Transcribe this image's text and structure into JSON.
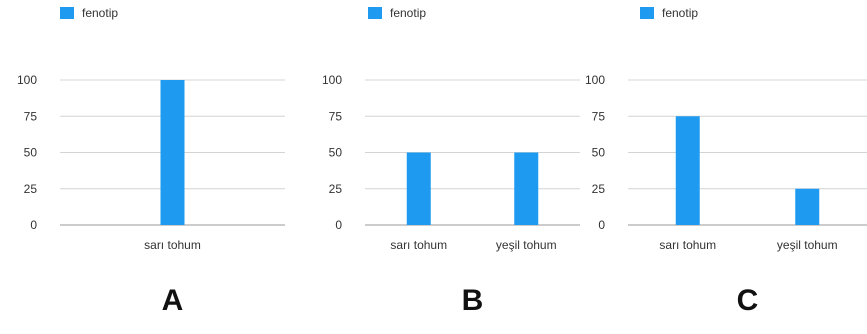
{
  "chart_data": [
    {
      "type": "bar",
      "panel_label": "A",
      "legend": [
        "fenotip"
      ],
      "categories": [
        "sarı tohum"
      ],
      "series": [
        {
          "name": "fenotip",
          "values": [
            100
          ]
        }
      ],
      "yticks": [
        "0",
        "25",
        "50",
        "75",
        "100"
      ],
      "ylim": [
        0,
        100
      ],
      "grid": true,
      "legend_position": "top-left",
      "bar_color": "#1e9bf0"
    },
    {
      "type": "bar",
      "panel_label": "B",
      "legend": [
        "fenotip"
      ],
      "categories": [
        "sarı tohum",
        "yeşil tohum"
      ],
      "series": [
        {
          "name": "fenotip",
          "values": [
            50,
            50
          ]
        }
      ],
      "yticks": [
        "0",
        "25",
        "50",
        "75",
        "100"
      ],
      "ylim": [
        0,
        100
      ],
      "grid": true,
      "legend_position": "top-left",
      "bar_color": "#1e9bf0"
    },
    {
      "type": "bar",
      "panel_label": "C",
      "legend": [
        "fenotip"
      ],
      "categories": [
        "sarı tohum",
        "yeşil tohum"
      ],
      "series": [
        {
          "name": "fenotip",
          "values": [
            75,
            25
          ]
        }
      ],
      "yticks": [
        "0",
        "25",
        "50",
        "75",
        "100"
      ],
      "ylim": [
        0,
        100
      ],
      "grid": true,
      "legend_position": "top-left",
      "bar_color": "#1e9bf0"
    }
  ]
}
